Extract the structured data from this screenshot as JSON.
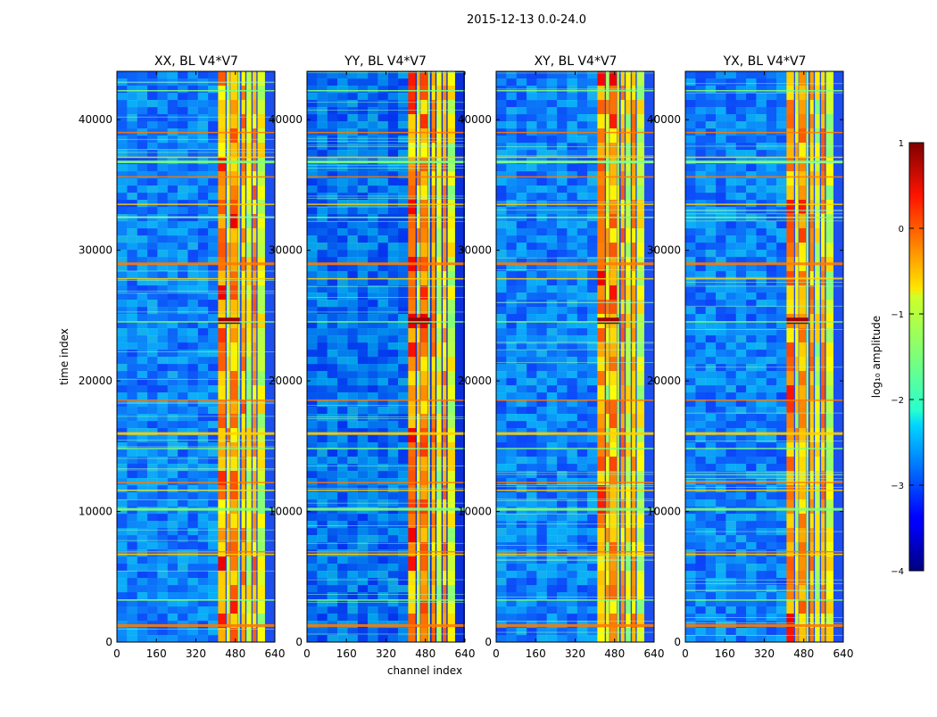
{
  "chart_data": {
    "type": "heatmap",
    "suptitle": "2015-12-13 0.0-24.0",
    "xlabel": "channel index",
    "ylabel": "time index",
    "xlim": [
      0,
      640
    ],
    "ylim": [
      0,
      43700
    ],
    "x_ticks": [
      0,
      160,
      320,
      480,
      640
    ],
    "y_ticks": [
      0,
      10000,
      20000,
      30000,
      40000
    ],
    "panels": [
      {
        "title": "XX, BL V4*V7",
        "seed": 11
      },
      {
        "title": "YY, BL V4*V7",
        "seed": 23
      },
      {
        "title": "XY, BL V4*V7",
        "seed": 37
      },
      {
        "title": "YX, BL V4*V7",
        "seed": 53
      }
    ],
    "colorbar": {
      "label": "log₁₀ amplitude",
      "range": [
        -4,
        1
      ],
      "ticks": [
        "1",
        "0",
        "−1",
        "−2",
        "−3",
        "−4"
      ],
      "colormap": "jet"
    },
    "high_channel_bands": [
      [
        410,
        440
      ],
      [
        445,
        458
      ],
      [
        460,
        488
      ],
      [
        490,
        498
      ],
      [
        505,
        520
      ],
      [
        525,
        545
      ],
      [
        550,
        565
      ],
      [
        570,
        600
      ]
    ],
    "rfi_rows": [
      1300,
      3200,
      6700,
      6900,
      10200,
      11600,
      12200,
      14800,
      16000,
      18500,
      24500,
      27800,
      29000,
      32500,
      33500,
      35600,
      36800,
      37100,
      39000,
      42200
    ]
  }
}
